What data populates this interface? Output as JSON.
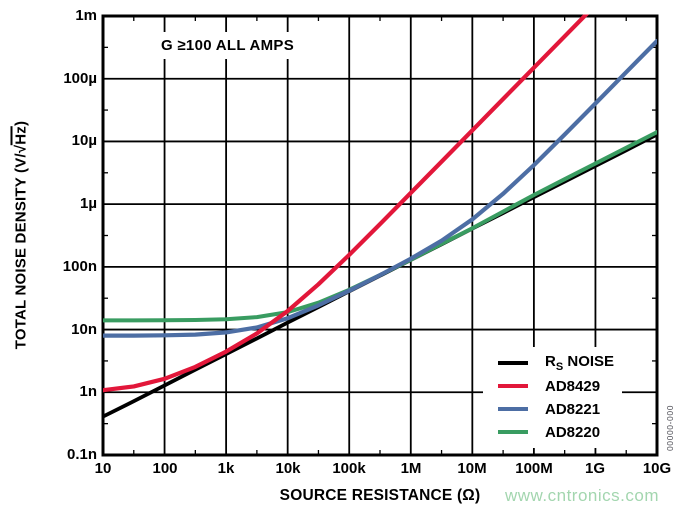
{
  "annotation": "G ≥100 ALL AMPS",
  "watermark": {
    "text": "www.cntronics.com",
    "color": "#a3d6af"
  },
  "figure_code": "00000-000",
  "legend": {
    "items": [
      {
        "pre": "R",
        "sub": "S",
        "post": " NOISE",
        "color": "#000000"
      },
      {
        "pre": "AD8429",
        "sub": "",
        "post": "",
        "color": "#e2173a"
      },
      {
        "pre": "AD8221",
        "sub": "",
        "post": "",
        "color": "#4d6ea4"
      },
      {
        "pre": "AD8220",
        "sub": "",
        "post": "",
        "color": "#399c61"
      }
    ]
  },
  "chart_data": {
    "type": "line",
    "title": "",
    "annotation": "G ≥100 ALL AMPS",
    "xlabel": "SOURCE RESISTANCE (Ω)",
    "ylabel": "TOTAL NOISE DENSITY (V/√Hz)",
    "ylabel_pre": "TOTAL NOISE DENSITY (V/√",
    "ylabel_overline": "Hz",
    "ylabel_post": ")",
    "x_scale": "log",
    "y_scale": "log",
    "x_range_ohms": [
      10,
      10000000000
    ],
    "y_range_V_per_rtHz": [
      1e-10,
      0.001
    ],
    "x_ticks": [
      "10",
      "100",
      "1k",
      "10k",
      "100k",
      "1M",
      "10M",
      "100M",
      "1G",
      "10G"
    ],
    "y_ticks": [
      "1m",
      "100µ",
      "10µ",
      "1µ",
      "100n",
      "10n",
      "1n",
      "0.1n"
    ],
    "grid": "major decade gridlines on",
    "legend_position": "inside bottom-right",
    "units_note": "series points are [log10(R in ohms), noise density in nV/√Hz]",
    "series": [
      {
        "name": "RS NOISE",
        "color": "#000000",
        "width": 3.8,
        "points": [
          [
            1,
            0.41
          ],
          [
            1.5,
            0.72
          ],
          [
            2,
            1.29
          ],
          [
            2.5,
            2.29
          ],
          [
            3,
            4.07
          ],
          [
            3.5,
            7.23
          ],
          [
            4,
            12.9
          ],
          [
            4.5,
            22.9
          ],
          [
            5,
            40.7
          ],
          [
            5.5,
            72.3
          ],
          [
            6,
            129
          ],
          [
            6.5,
            229
          ],
          [
            7,
            407
          ],
          [
            7.5,
            723
          ],
          [
            8,
            1290
          ],
          [
            8.5,
            2290
          ],
          [
            9,
            4070
          ],
          [
            9.5,
            7230
          ],
          [
            10,
            12900
          ]
        ]
      },
      {
        "name": "AD8220",
        "color": "#399c61",
        "width": 4,
        "points": [
          [
            1,
            14.0
          ],
          [
            1.5,
            14.0
          ],
          [
            2,
            14.1
          ],
          [
            2.5,
            14.2
          ],
          [
            3,
            14.6
          ],
          [
            3.5,
            15.8
          ],
          [
            4,
            19.0
          ],
          [
            4.5,
            26.8
          ],
          [
            5,
            43.0
          ],
          [
            5.5,
            74.0
          ],
          [
            6,
            130
          ],
          [
            6.5,
            233
          ],
          [
            7,
            412
          ],
          [
            7.5,
            760
          ],
          [
            8,
            1400
          ],
          [
            8.5,
            2500
          ],
          [
            9,
            4450
          ],
          [
            9.5,
            7900
          ],
          [
            10,
            14100
          ]
        ]
      },
      {
        "name": "AD8221",
        "color": "#4d6ea4",
        "width": 4.2,
        "points": [
          [
            1,
            8.0
          ],
          [
            1.5,
            8.0
          ],
          [
            2,
            8.1
          ],
          [
            2.5,
            8.3
          ],
          [
            3,
            9.0
          ],
          [
            3.5,
            10.8
          ],
          [
            4,
            15.2
          ],
          [
            4.5,
            24.3
          ],
          [
            5,
            41.7
          ],
          [
            5.5,
            73.8
          ],
          [
            6,
            135
          ],
          [
            6.5,
            261
          ],
          [
            7,
            571
          ],
          [
            7.5,
            1460
          ],
          [
            8,
            4200
          ],
          [
            8.5,
            12900
          ],
          [
            9,
            40200
          ],
          [
            9.5,
            127000
          ],
          [
            10,
            400000
          ]
        ]
      },
      {
        "name": "AD8429",
        "color": "#e2173a",
        "width": 4.2,
        "points": [
          [
            1,
            1.08
          ],
          [
            1.5,
            1.24
          ],
          [
            2,
            1.64
          ],
          [
            2.5,
            2.54
          ],
          [
            3,
            4.45
          ],
          [
            3.5,
            8.7
          ],
          [
            4,
            19.8
          ],
          [
            4.5,
            52.7
          ],
          [
            5,
            155
          ],
          [
            5.5,
            480
          ],
          [
            6,
            1510
          ],
          [
            6.5,
            4760
          ],
          [
            7,
            15000
          ],
          [
            7.5,
            47400
          ],
          [
            8,
            150000
          ],
          [
            8.5,
            474000
          ],
          [
            9,
            1500000
          ]
        ]
      }
    ]
  }
}
